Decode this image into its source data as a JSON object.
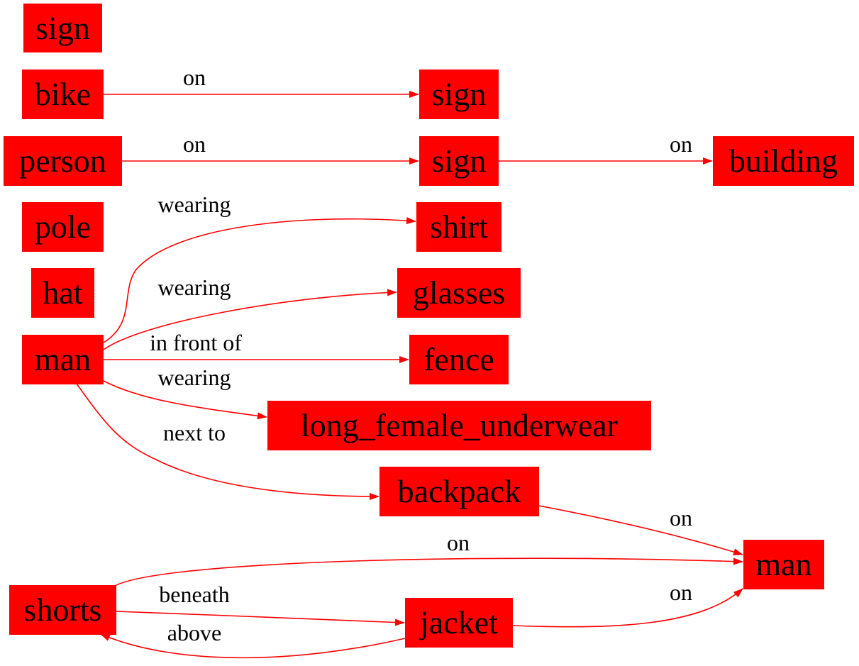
{
  "colors": {
    "node_fill": "#ff0000",
    "edge": "#ff0000",
    "text": "#000000",
    "background": "#ffffff"
  },
  "nodes": [
    {
      "id": "sign_1",
      "label": "sign"
    },
    {
      "id": "bike",
      "label": "bike"
    },
    {
      "id": "sign_2",
      "label": "sign"
    },
    {
      "id": "person",
      "label": "person"
    },
    {
      "id": "sign_3",
      "label": "sign"
    },
    {
      "id": "building",
      "label": "building"
    },
    {
      "id": "pole",
      "label": "pole"
    },
    {
      "id": "shirt",
      "label": "shirt"
    },
    {
      "id": "hat",
      "label": "hat"
    },
    {
      "id": "glasses",
      "label": "glasses"
    },
    {
      "id": "man_1",
      "label": "man"
    },
    {
      "id": "fence",
      "label": "fence"
    },
    {
      "id": "long_female_underwear",
      "label": "long_female_underwear"
    },
    {
      "id": "backpack",
      "label": "backpack"
    },
    {
      "id": "man_2",
      "label": "man"
    },
    {
      "id": "shorts",
      "label": "shorts"
    },
    {
      "id": "jacket",
      "label": "jacket"
    }
  ],
  "edges": [
    {
      "id": "bike-on-sign",
      "from": "bike",
      "to": "sign_2",
      "label": "on"
    },
    {
      "id": "person-on-sign",
      "from": "person",
      "to": "sign_3",
      "label": "on"
    },
    {
      "id": "sign-on-building",
      "from": "sign_3",
      "to": "building",
      "label": "on"
    },
    {
      "id": "man-wearing-shirt",
      "from": "man_1",
      "to": "shirt",
      "label": "wearing"
    },
    {
      "id": "man-wearing-glasses",
      "from": "man_1",
      "to": "glasses",
      "label": "wearing"
    },
    {
      "id": "man-infrontof-fence",
      "from": "man_1",
      "to": "fence",
      "label": "in front of"
    },
    {
      "id": "man-wearing-underwear",
      "from": "man_1",
      "to": "long_female_underwear",
      "label": "wearing"
    },
    {
      "id": "man-nextto-backpack",
      "from": "man_1",
      "to": "backpack",
      "label": "next to"
    },
    {
      "id": "backpack-on-man",
      "from": "backpack",
      "to": "man_2",
      "label": "on"
    },
    {
      "id": "shorts-on-man",
      "from": "shorts",
      "to": "man_2",
      "label": "on"
    },
    {
      "id": "shorts-beneath-jacket",
      "from": "shorts",
      "to": "jacket",
      "label": "beneath"
    },
    {
      "id": "jacket-on-man",
      "from": "jacket",
      "to": "man_2",
      "label": "on"
    },
    {
      "id": "jacket-above-shorts",
      "from": "jacket",
      "to": "shorts",
      "label": "above"
    }
  ]
}
